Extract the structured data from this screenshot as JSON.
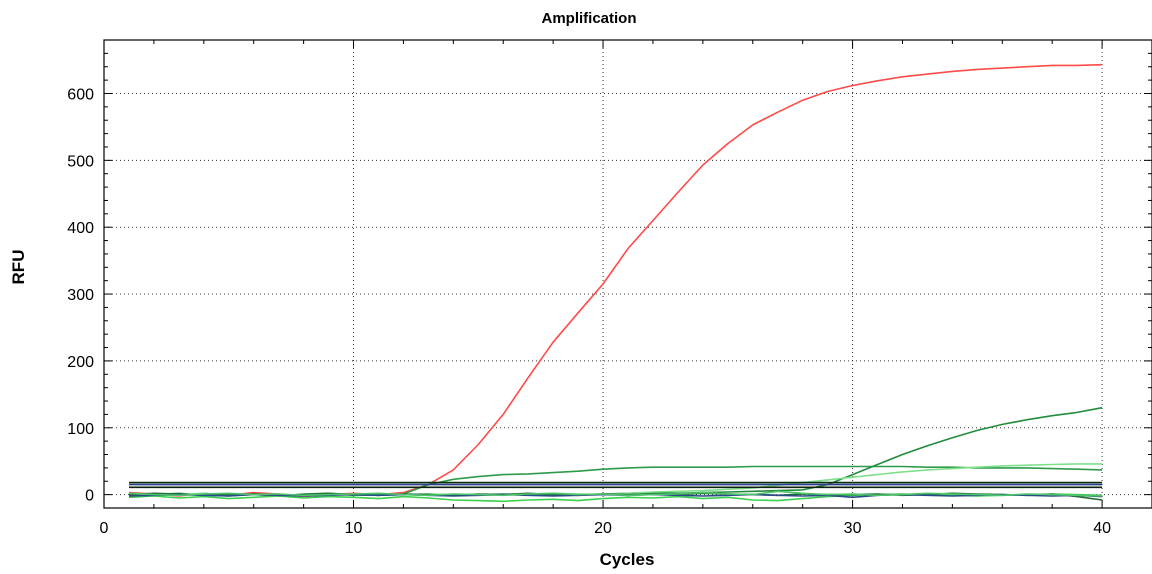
{
  "chart_data": {
    "type": "line",
    "title": "Amplification",
    "xlabel": "Cycles",
    "ylabel": "RFU",
    "xlim": [
      0,
      42
    ],
    "ylim": [
      -20,
      680
    ],
    "x_ticks": [
      0,
      10,
      20,
      30,
      40
    ],
    "x_tick_labels": [
      "0",
      "10",
      "20",
      "30",
      "40"
    ],
    "y_ticks": [
      0,
      100,
      200,
      300,
      400,
      500,
      600
    ],
    "y_tick_labels": [
      "0",
      "100",
      "200",
      "300",
      "400",
      "500",
      "600"
    ],
    "grid": true,
    "x": [
      1,
      2,
      3,
      4,
      5,
      6,
      7,
      8,
      9,
      10,
      11,
      12,
      13,
      14,
      15,
      16,
      17,
      18,
      19,
      20,
      21,
      22,
      23,
      24,
      25,
      26,
      27,
      28,
      29,
      30,
      31,
      32,
      33,
      34,
      35,
      36,
      37,
      38,
      39,
      40
    ],
    "series": [
      {
        "color": "#ff4a4a",
        "values": [
          3,
          1,
          -2,
          2,
          -1,
          3,
          1,
          -3,
          0,
          2,
          0,
          3,
          15,
          37,
          75,
          120,
          175,
          228,
          272,
          315,
          368,
          410,
          452,
          493,
          525,
          553,
          572,
          590,
          603,
          612,
          619,
          625,
          629,
          633,
          636,
          638,
          640,
          642,
          642,
          643
        ]
      },
      {
        "color": "#2e9b4a",
        "values": [
          -2,
          0,
          2,
          -1,
          1,
          0,
          -2,
          1,
          2,
          -1,
          0,
          1,
          15,
          23,
          27,
          30,
          31,
          33,
          35,
          38,
          40,
          41,
          41,
          41,
          41,
          42,
          42,
          42,
          42,
          42,
          42,
          42,
          41,
          41,
          40,
          40,
          40,
          39,
          38,
          37
        ]
      },
      {
        "color": "#238c3c",
        "values": [
          0,
          -1,
          1,
          0,
          -2,
          1,
          0,
          -1,
          1,
          0,
          -1,
          0,
          1,
          -1,
          0,
          1,
          0,
          -1,
          0,
          1,
          2,
          3,
          2,
          3,
          4,
          5,
          6,
          7,
          15,
          30,
          45,
          60,
          73,
          85,
          96,
          105,
          112,
          118,
          123,
          130
        ]
      },
      {
        "color": "#7fe08c",
        "values": [
          1,
          -1,
          0,
          2,
          -1,
          0,
          1,
          -2,
          0,
          1,
          -1,
          0,
          1,
          0,
          -1,
          0,
          1,
          2,
          1,
          0,
          2,
          4,
          5,
          6,
          8,
          10,
          14,
          18,
          22,
          26,
          30,
          34,
          37,
          39,
          41,
          43,
          44,
          45,
          46,
          46
        ]
      },
      {
        "color": "#3bd14f",
        "values": [
          -4,
          -2,
          -5,
          -3,
          -6,
          -4,
          -2,
          -5,
          -3,
          -4,
          -6,
          -3,
          -5,
          -8,
          -9,
          -10,
          -8,
          -7,
          -9,
          -6,
          -4,
          -5,
          -3,
          -6,
          -4,
          -8,
          -9,
          -6,
          -3,
          -1,
          0,
          1,
          0,
          -1,
          -2,
          -1,
          0,
          1,
          0,
          -1
        ]
      },
      {
        "color": "#1f6d33",
        "values": [
          0,
          2,
          1,
          -1,
          0,
          1,
          -1,
          0,
          2,
          0,
          -1,
          1,
          0,
          -1,
          1,
          0,
          2,
          0,
          -1,
          1,
          0,
          1,
          0,
          2,
          1,
          0,
          -1,
          1,
          0,
          0,
          1,
          -1,
          0,
          2,
          1,
          0,
          -1,
          1,
          -3,
          -8
        ]
      },
      {
        "color": "#2b4a8c",
        "values": [
          -2,
          -1,
          0,
          -1,
          -2,
          0,
          -1,
          -2,
          -1,
          0,
          -1,
          0,
          -1,
          -2,
          -1,
          0,
          -1,
          -2,
          -1,
          0,
          -1,
          0,
          -1,
          -2,
          -1,
          0,
          -1,
          -2,
          -1,
          -4,
          -1,
          0,
          -1,
          -2,
          -1,
          0,
          -1,
          -2,
          -1,
          -3
        ]
      },
      {
        "color": "#4ec46a",
        "values": [
          2,
          0,
          -1,
          1,
          2,
          0,
          1,
          -1,
          0,
          1,
          2,
          0,
          -1,
          1,
          0,
          -1,
          1,
          2,
          0,
          1,
          -1,
          0,
          1,
          3,
          1,
          0,
          5,
          2,
          0,
          1,
          -1,
          0,
          2,
          1,
          0,
          -1,
          1,
          0,
          -1,
          -2
        ]
      },
      {
        "color": "#0b2f0b",
        "values": [
          18,
          18,
          18,
          18,
          18,
          18,
          18,
          18,
          18,
          18,
          18,
          18,
          18,
          18,
          18,
          18,
          18,
          18,
          18,
          18,
          18,
          18,
          18,
          18,
          18,
          18,
          18,
          18,
          18,
          18,
          18,
          18,
          18,
          18,
          18,
          18,
          18,
          18,
          18,
          18
        ]
      },
      {
        "color": "#2a3f8f",
        "values": [
          15,
          15,
          15,
          15,
          15,
          15,
          15,
          15,
          15,
          15,
          15,
          15,
          15,
          15,
          15,
          15,
          15,
          15,
          15,
          15,
          15,
          15,
          15,
          15,
          15,
          15,
          15,
          15,
          15,
          15,
          15,
          15,
          15,
          15,
          15,
          15,
          15,
          15,
          15,
          15
        ]
      },
      {
        "color": "#0d1f0d",
        "values": [
          11,
          11,
          11,
          11,
          11,
          11,
          11,
          11,
          11,
          11,
          11,
          11,
          11,
          11,
          11,
          11,
          11,
          11,
          11,
          11,
          11,
          11,
          11,
          11,
          11,
          11,
          11,
          11,
          11,
          11,
          11,
          11,
          11,
          11,
          11,
          11,
          11,
          11,
          11,
          11
        ]
      }
    ]
  }
}
